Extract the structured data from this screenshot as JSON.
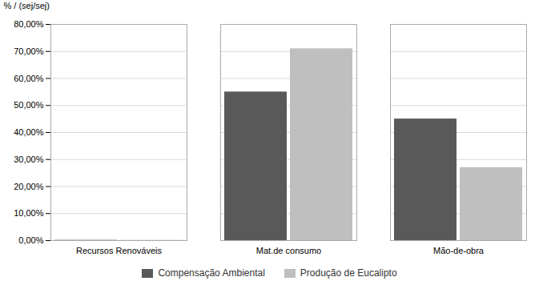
{
  "chart_data": {
    "type": "bar",
    "ylabel": "% / (sej/sej)",
    "categories": [
      "Recursos Renováveis",
      "Mat.de consumo",
      "Mão-de-obra"
    ],
    "series": [
      {
        "name": "Compensação Ambiental",
        "color": "#595959",
        "values": [
          0.001,
          0.55,
          0.45
        ]
      },
      {
        "name": "Produção de Eucalipto",
        "color": "#bfbfbf",
        "values": [
          0.001,
          0.71,
          0.27
        ]
      }
    ],
    "ylim": [
      0,
      0.8
    ],
    "yticks": [
      {
        "value": 0.0,
        "label": "0,00%"
      },
      {
        "value": 0.1,
        "label": "10,00%"
      },
      {
        "value": 0.2,
        "label": "20,00%"
      },
      {
        "value": 0.3,
        "label": "30,00%"
      },
      {
        "value": 0.4,
        "label": "40,00%"
      },
      {
        "value": 0.5,
        "label": "50,00%"
      },
      {
        "value": 0.6,
        "label": "60,00%"
      },
      {
        "value": 0.7,
        "label": "70,00%"
      },
      {
        "value": 0.8,
        "label": "80,00%"
      }
    ],
    "grid": true,
    "legend": "bottom"
  }
}
